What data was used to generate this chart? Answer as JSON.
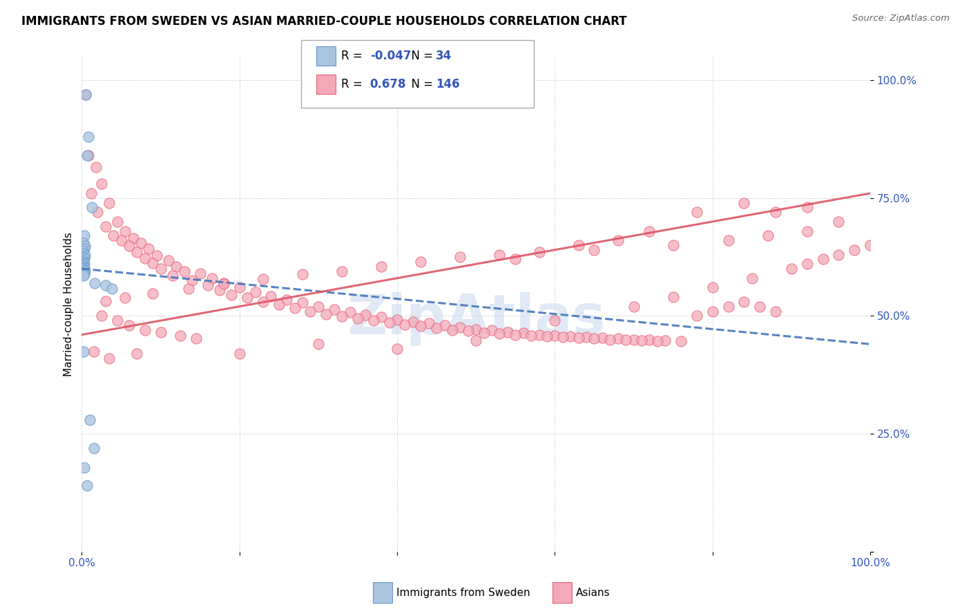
{
  "title": "IMMIGRANTS FROM SWEDEN VS ASIAN MARRIED-COUPLE HOUSEHOLDS CORRELATION CHART",
  "source": "Source: ZipAtlas.com",
  "ylabel": "Married-couple Households",
  "ytick_labels": [
    "",
    "25.0%",
    "50.0%",
    "75.0%",
    "100.0%"
  ],
  "ytick_positions": [
    0.0,
    0.25,
    0.5,
    0.75,
    1.0
  ],
  "legend_blue_r": "-0.047",
  "legend_blue_n": "34",
  "legend_pink_r": "0.678",
  "legend_pink_n": "146",
  "legend_label_blue": "Immigrants from Sweden",
  "legend_label_pink": "Asians",
  "blue_color": "#aac4e0",
  "pink_color": "#f4a8b8",
  "blue_edge_color": "#6699cc",
  "pink_edge_color": "#e8607a",
  "blue_line_color": "#4477bb",
  "pink_line_color": "#dd5566",
  "watermark": "ZipAtlas",
  "blue_scatter": [
    [
      0.005,
      0.97
    ],
    [
      0.008,
      0.88
    ],
    [
      0.007,
      0.84
    ],
    [
      0.013,
      0.73
    ],
    [
      0.003,
      0.67
    ],
    [
      0.002,
      0.655
    ],
    [
      0.004,
      0.648
    ],
    [
      0.003,
      0.642
    ],
    [
      0.001,
      0.638
    ],
    [
      0.002,
      0.632
    ],
    [
      0.004,
      0.628
    ],
    [
      0.001,
      0.625
    ],
    [
      0.003,
      0.622
    ],
    [
      0.002,
      0.618
    ],
    [
      0.001,
      0.615
    ],
    [
      0.002,
      0.612
    ],
    [
      0.003,
      0.61
    ],
    [
      0.001,
      0.607
    ],
    [
      0.002,
      0.605
    ],
    [
      0.003,
      0.602
    ],
    [
      0.001,
      0.6
    ],
    [
      0.002,
      0.597
    ],
    [
      0.004,
      0.594
    ],
    [
      0.001,
      0.591
    ],
    [
      0.003,
      0.588
    ],
    [
      0.002,
      0.585
    ],
    [
      0.016,
      0.57
    ],
    [
      0.03,
      0.565
    ],
    [
      0.038,
      0.558
    ],
    [
      0.002,
      0.425
    ],
    [
      0.01,
      0.28
    ],
    [
      0.015,
      0.22
    ],
    [
      0.003,
      0.178
    ],
    [
      0.007,
      0.14
    ]
  ],
  "pink_scatter": [
    [
      0.005,
      0.97
    ],
    [
      0.008,
      0.84
    ],
    [
      0.018,
      0.815
    ],
    [
      0.025,
      0.78
    ],
    [
      0.012,
      0.76
    ],
    [
      0.035,
      0.74
    ],
    [
      0.02,
      0.72
    ],
    [
      0.045,
      0.7
    ],
    [
      0.03,
      0.69
    ],
    [
      0.055,
      0.68
    ],
    [
      0.04,
      0.67
    ],
    [
      0.065,
      0.665
    ],
    [
      0.05,
      0.66
    ],
    [
      0.075,
      0.655
    ],
    [
      0.06,
      0.648
    ],
    [
      0.085,
      0.642
    ],
    [
      0.07,
      0.635
    ],
    [
      0.095,
      0.628
    ],
    [
      0.08,
      0.622
    ],
    [
      0.11,
      0.618
    ],
    [
      0.09,
      0.612
    ],
    [
      0.12,
      0.605
    ],
    [
      0.1,
      0.6
    ],
    [
      0.13,
      0.595
    ],
    [
      0.15,
      0.59
    ],
    [
      0.115,
      0.585
    ],
    [
      0.165,
      0.58
    ],
    [
      0.14,
      0.575
    ],
    [
      0.18,
      0.57
    ],
    [
      0.16,
      0.565
    ],
    [
      0.2,
      0.56
    ],
    [
      0.175,
      0.555
    ],
    [
      0.22,
      0.55
    ],
    [
      0.19,
      0.545
    ],
    [
      0.24,
      0.542
    ],
    [
      0.21,
      0.538
    ],
    [
      0.26,
      0.535
    ],
    [
      0.23,
      0.53
    ],
    [
      0.28,
      0.528
    ],
    [
      0.25,
      0.524
    ],
    [
      0.3,
      0.52
    ],
    [
      0.27,
      0.516
    ],
    [
      0.32,
      0.514
    ],
    [
      0.29,
      0.51
    ],
    [
      0.34,
      0.508
    ],
    [
      0.31,
      0.504
    ],
    [
      0.36,
      0.502
    ],
    [
      0.33,
      0.499
    ],
    [
      0.38,
      0.497
    ],
    [
      0.35,
      0.494
    ],
    [
      0.4,
      0.492
    ],
    [
      0.37,
      0.49
    ],
    [
      0.42,
      0.488
    ],
    [
      0.39,
      0.486
    ],
    [
      0.44,
      0.484
    ],
    [
      0.41,
      0.482
    ],
    [
      0.46,
      0.48
    ],
    [
      0.43,
      0.478
    ],
    [
      0.48,
      0.476
    ],
    [
      0.45,
      0.474
    ],
    [
      0.5,
      0.472
    ],
    [
      0.47,
      0.47
    ],
    [
      0.52,
      0.47
    ],
    [
      0.49,
      0.468
    ],
    [
      0.54,
      0.466
    ],
    [
      0.51,
      0.464
    ],
    [
      0.56,
      0.464
    ],
    [
      0.53,
      0.462
    ],
    [
      0.58,
      0.46
    ],
    [
      0.55,
      0.46
    ],
    [
      0.6,
      0.458
    ],
    [
      0.57,
      0.458
    ],
    [
      0.62,
      0.456
    ],
    [
      0.59,
      0.456
    ],
    [
      0.64,
      0.455
    ],
    [
      0.61,
      0.455
    ],
    [
      0.66,
      0.453
    ],
    [
      0.63,
      0.453
    ],
    [
      0.68,
      0.452
    ],
    [
      0.65,
      0.452
    ],
    [
      0.7,
      0.45
    ],
    [
      0.67,
      0.45
    ],
    [
      0.72,
      0.449
    ],
    [
      0.69,
      0.449
    ],
    [
      0.74,
      0.448
    ],
    [
      0.71,
      0.448
    ],
    [
      0.76,
      0.447
    ],
    [
      0.73,
      0.447
    ],
    [
      0.78,
      0.5
    ],
    [
      0.8,
      0.51
    ],
    [
      0.82,
      0.52
    ],
    [
      0.84,
      0.53
    ],
    [
      0.86,
      0.52
    ],
    [
      0.88,
      0.51
    ],
    [
      0.025,
      0.5
    ],
    [
      0.045,
      0.49
    ],
    [
      0.06,
      0.48
    ],
    [
      0.08,
      0.47
    ],
    [
      0.1,
      0.465
    ],
    [
      0.125,
      0.458
    ],
    [
      0.145,
      0.452
    ],
    [
      0.015,
      0.425
    ],
    [
      0.035,
      0.41
    ],
    [
      0.07,
      0.42
    ],
    [
      0.2,
      0.42
    ],
    [
      0.3,
      0.44
    ],
    [
      0.4,
      0.43
    ],
    [
      0.5,
      0.448
    ],
    [
      0.6,
      0.49
    ],
    [
      0.7,
      0.52
    ],
    [
      0.75,
      0.54
    ],
    [
      0.8,
      0.56
    ],
    [
      0.85,
      0.58
    ],
    [
      0.9,
      0.6
    ],
    [
      0.92,
      0.61
    ],
    [
      0.94,
      0.62
    ],
    [
      0.96,
      0.63
    ],
    [
      0.98,
      0.64
    ],
    [
      1.0,
      0.65
    ],
    [
      0.55,
      0.62
    ],
    [
      0.65,
      0.64
    ],
    [
      0.75,
      0.65
    ],
    [
      0.82,
      0.66
    ],
    [
      0.87,
      0.67
    ],
    [
      0.92,
      0.68
    ],
    [
      0.96,
      0.7
    ],
    [
      0.88,
      0.72
    ],
    [
      0.92,
      0.73
    ],
    [
      0.84,
      0.74
    ],
    [
      0.78,
      0.72
    ],
    [
      0.72,
      0.68
    ],
    [
      0.68,
      0.66
    ],
    [
      0.63,
      0.65
    ],
    [
      0.58,
      0.635
    ],
    [
      0.53,
      0.63
    ],
    [
      0.48,
      0.625
    ],
    [
      0.43,
      0.615
    ],
    [
      0.38,
      0.605
    ],
    [
      0.33,
      0.595
    ],
    [
      0.28,
      0.588
    ],
    [
      0.23,
      0.578
    ],
    [
      0.18,
      0.568
    ],
    [
      0.135,
      0.558
    ],
    [
      0.09,
      0.548
    ],
    [
      0.055,
      0.538
    ],
    [
      0.03,
      0.532
    ]
  ],
  "xlim": [
    0,
    1.0
  ],
  "ylim": [
    0,
    1.05
  ],
  "blue_trend_x": [
    0.0,
    1.0
  ],
  "blue_trend_y": [
    0.6,
    0.44
  ],
  "pink_trend_x": [
    0.0,
    1.0
  ],
  "pink_trend_y": [
    0.46,
    0.76
  ]
}
